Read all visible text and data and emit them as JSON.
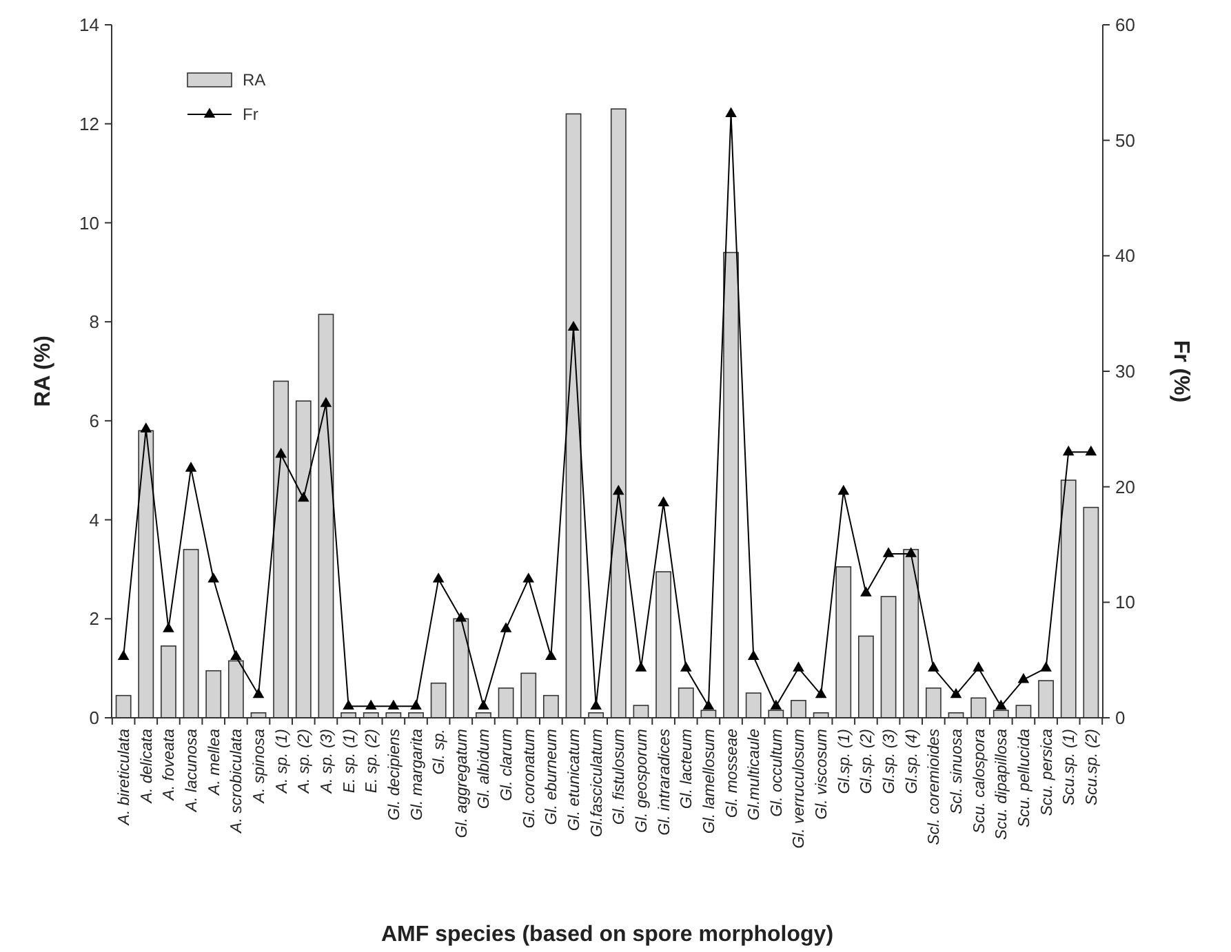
{
  "chart_data": {
    "type": "bar",
    "xlabel": "AMF species (based on spore morphology)",
    "ylabel": "RA (%)",
    "y2label": "Fr (%)",
    "categories": [
      "A. bireticulata",
      "A. delicata",
      "A. foveata",
      "A. lacunosa",
      "A. mellea",
      "A. scrobiculata",
      "A. spinosa",
      "A. sp. (1)",
      "A. sp. (2)",
      "A. sp. (3)",
      "E. sp. (1)",
      "E. sp. (2)",
      "Gl. decipiens",
      "Gl. margarita",
      "Gl. sp.",
      "Gl. aggregatum",
      "Gl. albidum",
      "Gl. clarum",
      "Gl. coronatum",
      "Gl. eburneum",
      "Gl. etunicatum",
      "Gl.fasciculatum",
      "Gl. fistulosum",
      "Gl. geosporum",
      "Gl. intraradices",
      "Gl. lacteum",
      "Gl. lamellosum",
      "Gl. mosseae",
      "Gl.multicaule",
      "Gl. occultum",
      "Gl. verruculosum",
      "Gl. viscosum",
      "Gl.sp. (1)",
      "Gl.sp. (2)",
      "Gl.sp. (3)",
      "Gl.sp. (4)",
      "Scl. coremioides",
      "Scl. sinuosa",
      "Scu. calospora",
      "Scu. dipapillosa",
      "Scu. pellucida",
      "Scu. persica",
      "Scu.sp. (1)",
      "Scu.sp. (2)"
    ],
    "series": [
      {
        "name": "RA",
        "color": "#d3d3d3",
        "values": [
          0.45,
          5.8,
          1.45,
          3.4,
          0.95,
          1.15,
          0.1,
          6.8,
          6.4,
          8.15,
          0.1,
          0.1,
          0.1,
          0.1,
          0.7,
          2.0,
          0.1,
          0.6,
          0.9,
          0.45,
          12.2,
          0.1,
          12.3,
          0.25,
          2.95,
          0.6,
          0.15,
          9.4,
          0.5,
          0.15,
          0.35,
          0.1,
          3.05,
          1.65,
          2.45,
          3.4,
          0.6,
          0.1,
          0.4,
          0.15,
          0.25,
          0.75,
          4.8,
          4.25
        ]
      },
      {
        "name": "Fr",
        "type": "line",
        "axis": "y2",
        "color": "#000000",
        "values": [
          5.3,
          25,
          7.7,
          21.6,
          12,
          5.3,
          2,
          22.8,
          19,
          27.2,
          1,
          1,
          1,
          1,
          12,
          8.6,
          1,
          7.7,
          12,
          5.3,
          33.8,
          1,
          19.6,
          4.3,
          18.6,
          4.3,
          1,
          52.3,
          5.3,
          1,
          4.3,
          2,
          19.6,
          10.8,
          14.2,
          14.2,
          4.3,
          2,
          4.3,
          1,
          3.3,
          4.3,
          23,
          23
        ]
      }
    ],
    "ylim": [
      0,
      14
    ],
    "yticks": [
      0,
      2,
      4,
      6,
      8,
      10,
      12,
      14
    ],
    "y2lim": [
      0,
      60
    ],
    "y2ticks": [
      0,
      10,
      20,
      30,
      40,
      50,
      60
    ],
    "grid": false,
    "legend": "top left",
    "marker": "triangle",
    "line_style": "solid"
  }
}
